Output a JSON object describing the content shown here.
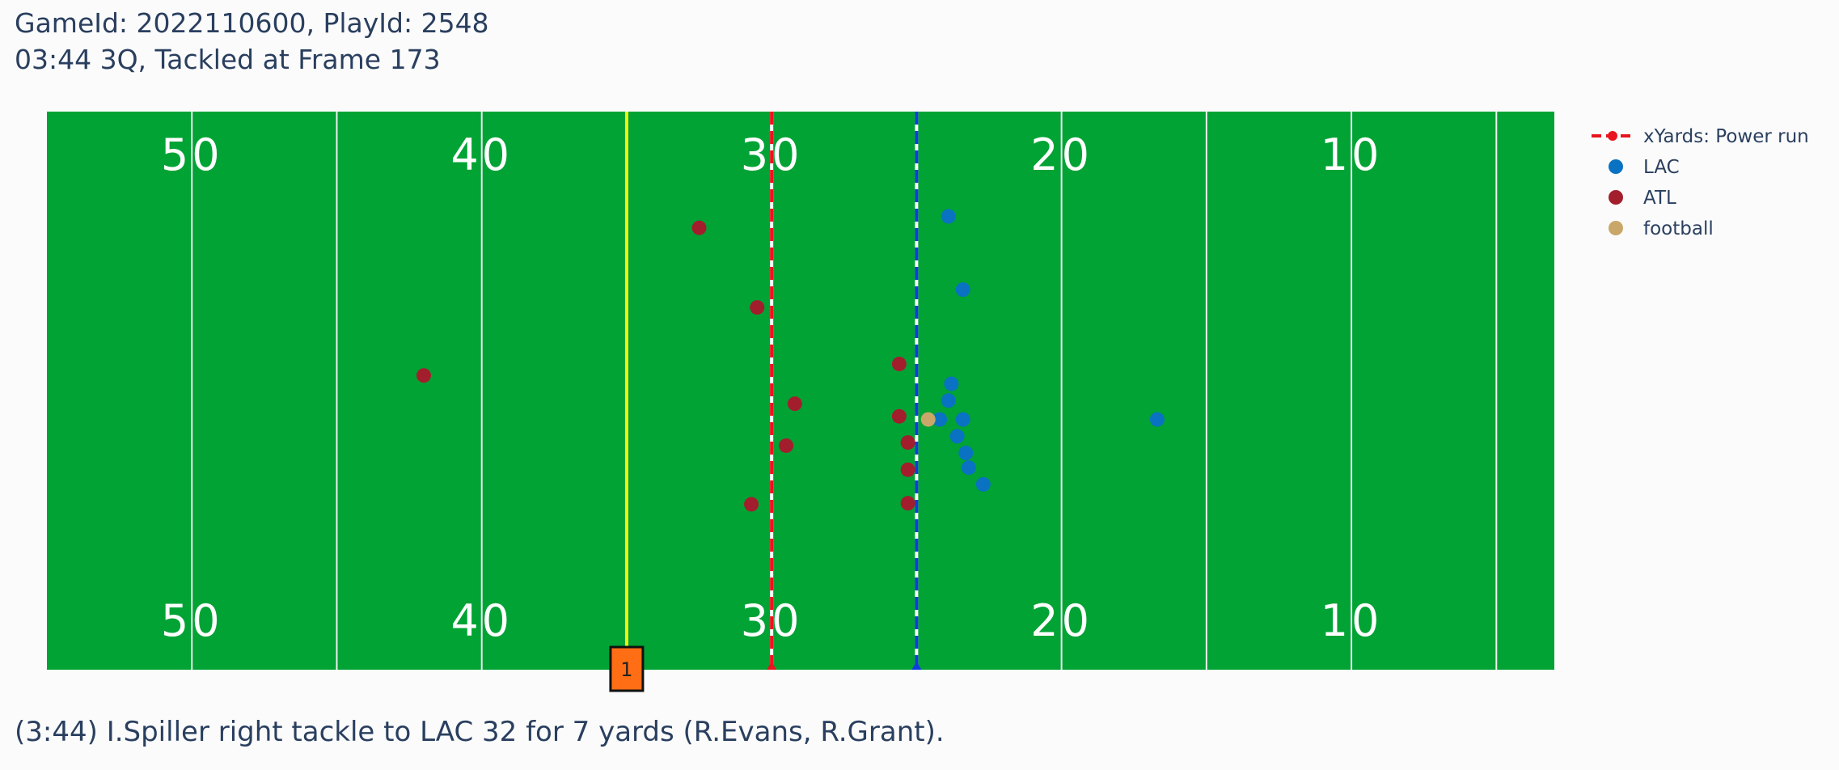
{
  "title": {
    "line1": "GameId: 2022110600, PlayId: 2548",
    "line2": "03:44 3Q, Tackled at Frame 173"
  },
  "caption": "(3:44) I.Spiller right tackle to LAC 32 for 7 yards (R.Evans, R.Grant).",
  "colors": {
    "field": "#00a334",
    "lac": "#0a72c2",
    "atl": "#a31e2d",
    "football": "#c8a769",
    "xyards": "#e8141e",
    "scrimmage": "#0f3cde",
    "first_down": "#f3f312",
    "marker_fill": "#ff6e14",
    "yard_line": "#f0f0f0"
  },
  "chart_data": {
    "type": "scatter",
    "xlim": [
      55,
      3
    ],
    "ylim": [
      0,
      53.3
    ],
    "yard_lines": [
      55,
      50,
      45,
      40,
      35,
      30,
      25,
      20,
      15,
      10,
      5
    ],
    "yard_numbers_top": [
      "50",
      "40",
      "30",
      "20",
      "10"
    ],
    "yard_numbers_bottom": [
      "50",
      "40",
      "30",
      "20",
      "10"
    ],
    "yard_number_positions": [
      50,
      40,
      30,
      20,
      10
    ],
    "line_of_scrimmage": 25,
    "first_down_line": 35,
    "xyards_line": 30,
    "down_marker": {
      "label": "1",
      "yard": 35
    },
    "legend": [
      {
        "name": "xYards: Power run",
        "kind": "dashline",
        "color_key": "xyards"
      },
      {
        "name": "LAC",
        "kind": "dot",
        "color_key": "lac"
      },
      {
        "name": "ATL",
        "kind": "dot",
        "color_key": "atl"
      },
      {
        "name": "football",
        "kind": "dot",
        "color_key": "football"
      }
    ],
    "series": [
      {
        "name": "LAC",
        "points": [
          {
            "x": 23.9,
            "y": 43.3
          },
          {
            "x": 23.4,
            "y": 36.3
          },
          {
            "x": 23.8,
            "y": 27.3
          },
          {
            "x": 23.9,
            "y": 25.7
          },
          {
            "x": 24.2,
            "y": 23.9
          },
          {
            "x": 23.4,
            "y": 23.9
          },
          {
            "x": 23.6,
            "y": 22.3
          },
          {
            "x": 23.3,
            "y": 20.7
          },
          {
            "x": 23.2,
            "y": 19.3
          },
          {
            "x": 22.7,
            "y": 17.7
          },
          {
            "x": 16.7,
            "y": 23.9
          }
        ]
      },
      {
        "name": "ATL",
        "points": [
          {
            "x": 32.5,
            "y": 42.2
          },
          {
            "x": 30.5,
            "y": 34.6
          },
          {
            "x": 42.0,
            "y": 28.1
          },
          {
            "x": 25.6,
            "y": 29.2
          },
          {
            "x": 29.2,
            "y": 25.4
          },
          {
            "x": 25.6,
            "y": 24.2
          },
          {
            "x": 25.3,
            "y": 21.7
          },
          {
            "x": 29.5,
            "y": 21.4
          },
          {
            "x": 25.3,
            "y": 19.1
          },
          {
            "x": 30.7,
            "y": 15.8
          },
          {
            "x": 25.3,
            "y": 15.9
          }
        ]
      },
      {
        "name": "football",
        "points": [
          {
            "x": 24.6,
            "y": 23.9
          }
        ]
      }
    ]
  }
}
